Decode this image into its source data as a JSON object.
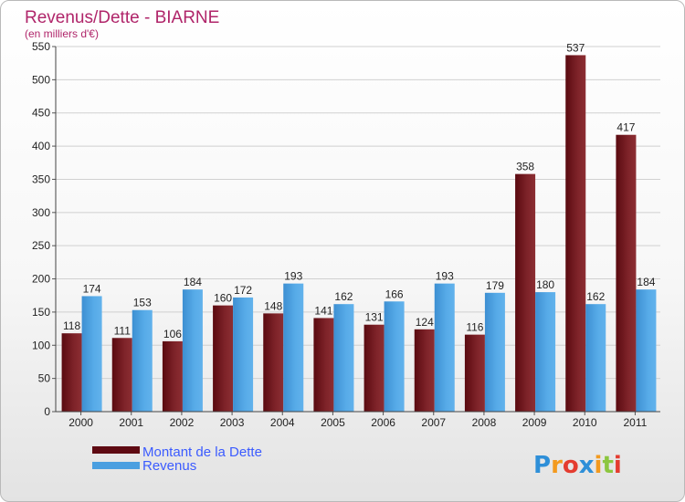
{
  "chart_data": {
    "type": "bar",
    "title": "Revenus/Dette - BIARNE",
    "subtitle": "(en milliers d'€)",
    "categories": [
      "2000",
      "2001",
      "2002",
      "2003",
      "2004",
      "2005",
      "2006",
      "2007",
      "2008",
      "2009",
      "2010",
      "2011"
    ],
    "series": [
      {
        "name": "Montant de la Dette",
        "color": "#7a1d22",
        "values": [
          118,
          111,
          106,
          160,
          148,
          141,
          131,
          124,
          116,
          358,
          537,
          417
        ]
      },
      {
        "name": "Revenus",
        "color": "#4a9fe0",
        "values": [
          174,
          153,
          184,
          172,
          193,
          162,
          166,
          193,
          179,
          180,
          162,
          184
        ]
      }
    ],
    "ylim": [
      0,
      550
    ],
    "yticks": [
      0,
      50,
      100,
      150,
      200,
      250,
      300,
      350,
      400,
      450,
      500,
      550
    ],
    "grid": true,
    "legend_position": "bottom-left"
  },
  "logo": {
    "letters": [
      "P",
      "r",
      "o",
      "x",
      "i",
      "t",
      "i"
    ],
    "colors": [
      "#2e8fd8",
      "#f39a1e",
      "#e43c2f",
      "#2e8fd8",
      "#f39a1e",
      "#8cc63f",
      "#e43c2f"
    ]
  }
}
